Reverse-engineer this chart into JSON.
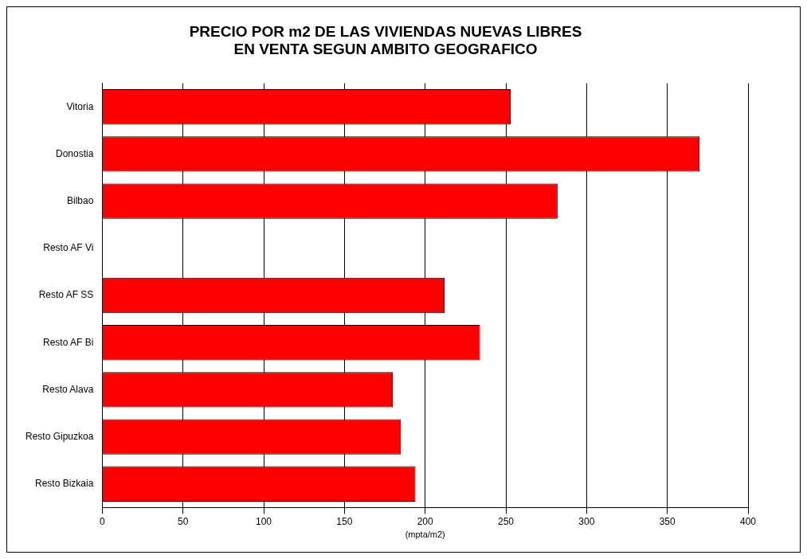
{
  "chart_data": {
    "type": "bar",
    "orientation": "horizontal",
    "title": "PRECIO POR m2 DE LAS VIVIENDAS NUEVAS LIBRES\nEN VENTA SEGUN AMBITO GEOGRAFICO",
    "xlabel": "(mpta/m2)",
    "categories": [
      "Vitoria",
      "Donostia",
      "Bilbao",
      "Resto AF Vi",
      "Resto AF SS",
      "Resto AF Bi",
      "Resto Alava",
      "Resto Gipuzkoa",
      "Resto Bizkaia"
    ],
    "values": [
      253,
      370,
      282,
      0,
      212,
      234,
      180,
      185,
      194
    ],
    "color": "#ff0000",
    "xlim": [
      0,
      400
    ],
    "xticks": [
      0,
      50,
      100,
      150,
      200,
      250,
      300,
      350,
      400
    ],
    "grid": "x"
  }
}
